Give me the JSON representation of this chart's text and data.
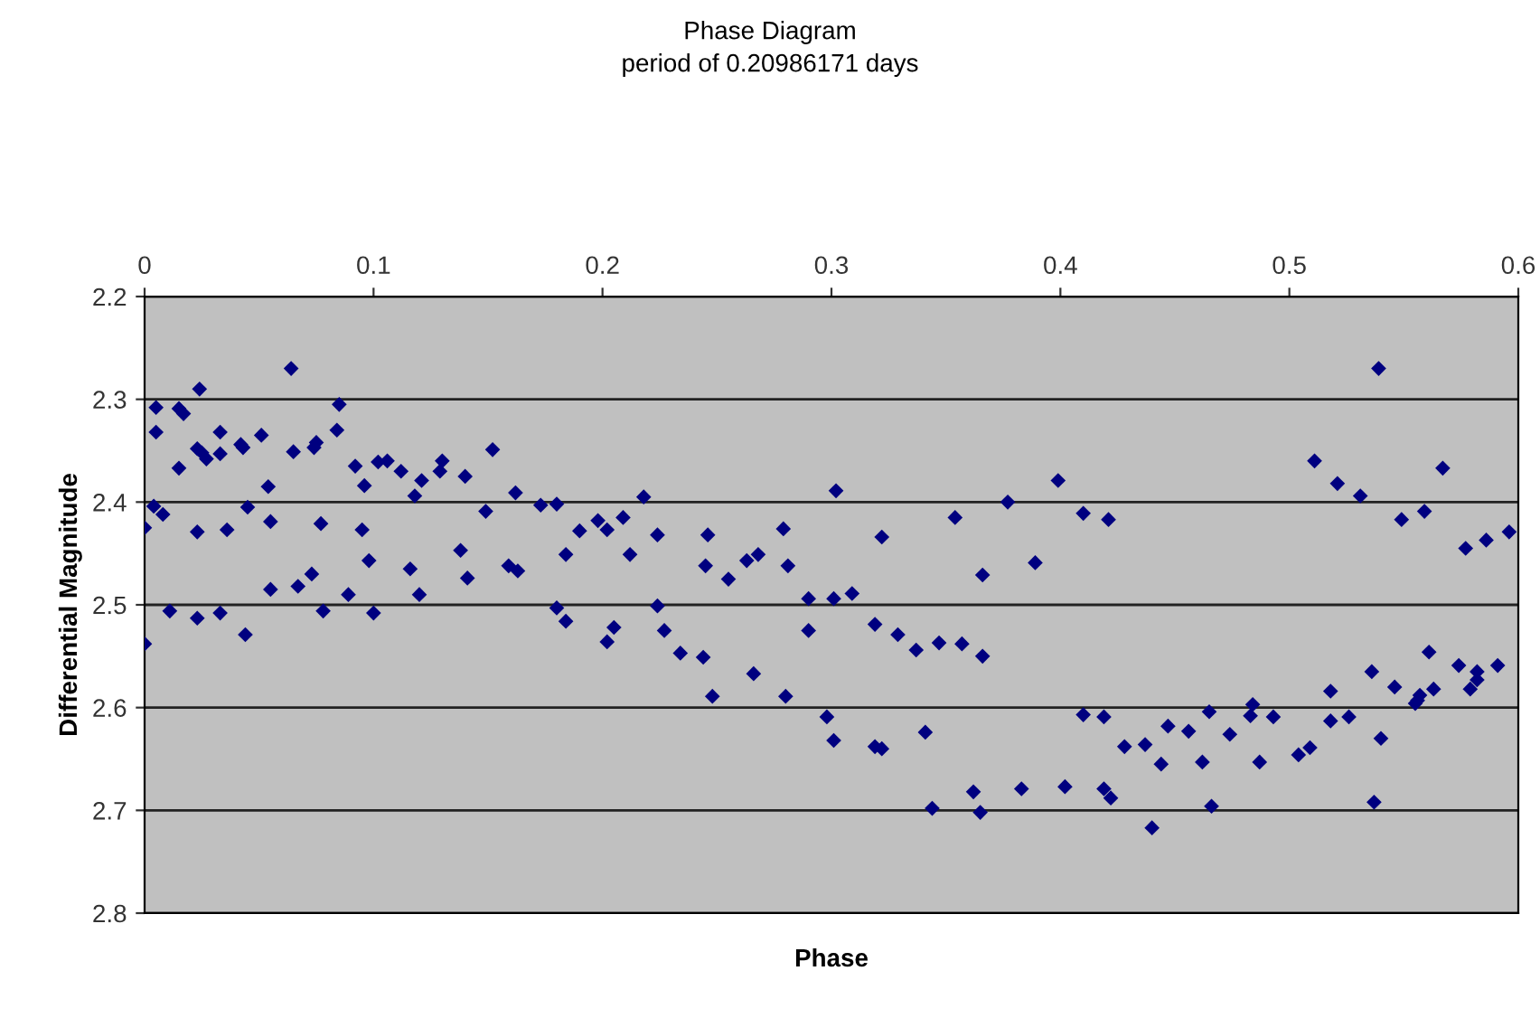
{
  "chart_data": {
    "type": "scatter",
    "title": "Phase Diagram",
    "subtitle": "period of 0.20986171 days",
    "xlabel": "Phase",
    "ylabel": "Differential Magnitude",
    "xlim": [
      0,
      0.6
    ],
    "xticks": [
      0,
      0.1,
      0.2,
      0.3,
      0.4,
      0.5,
      0.6
    ],
    "ylim": [
      2.8,
      2.2
    ],
    "yticks": [
      2.2,
      2.3,
      2.4,
      2.5,
      2.6,
      2.7,
      2.8
    ],
    "grid": "y",
    "marker": "diamond",
    "series": [
      {
        "color": "#000080",
        "x": [
          0.0,
          0.0,
          0.004,
          0.005,
          0.005,
          0.008,
          0.011,
          0.015,
          0.015,
          0.017,
          0.023,
          0.023,
          0.023,
          0.024,
          0.025,
          0.027,
          0.033,
          0.033,
          0.033,
          0.036,
          0.042,
          0.043,
          0.044,
          0.045,
          0.051,
          0.054,
          0.055,
          0.055,
          0.064,
          0.065,
          0.067,
          0.073,
          0.074,
          0.075,
          0.077,
          0.078,
          0.084,
          0.085,
          0.089,
          0.092,
          0.095,
          0.096,
          0.098,
          0.1,
          0.102,
          0.106,
          0.112,
          0.116,
          0.118,
          0.12,
          0.121,
          0.129,
          0.13,
          0.138,
          0.14,
          0.141,
          0.149,
          0.152,
          0.159,
          0.163,
          0.162,
          0.173,
          0.18,
          0.18,
          0.184,
          0.184,
          0.19,
          0.198,
          0.202,
          0.202,
          0.205,
          0.209,
          0.212,
          0.218,
          0.224,
          0.224,
          0.227,
          0.234,
          0.244,
          0.246,
          0.245,
          0.248,
          0.255,
          0.263,
          0.266,
          0.268,
          0.279,
          0.28,
          0.281,
          0.29,
          0.29,
          0.298,
          0.301,
          0.301,
          0.302,
          0.309,
          0.319,
          0.319,
          0.322,
          0.322,
          0.329,
          0.337,
          0.341,
          0.344,
          0.347,
          0.354,
          0.357,
          0.362,
          0.365,
          0.366,
          0.366,
          0.377,
          0.383,
          0.389,
          0.399,
          0.402,
          0.41,
          0.41,
          0.419,
          0.419,
          0.421,
          0.422,
          0.428,
          0.437,
          0.44,
          0.444,
          0.447,
          0.456,
          0.462,
          0.465,
          0.466,
          0.474,
          0.483,
          0.484,
          0.487,
          0.493,
          0.504,
          0.509,
          0.511,
          0.518,
          0.518,
          0.521,
          0.526,
          0.531,
          0.536,
          0.537,
          0.539,
          0.54,
          0.546,
          0.549,
          0.555,
          0.556,
          0.557,
          0.559,
          0.561,
          0.563,
          0.567,
          0.574,
          0.577,
          0.579,
          0.582,
          0.582,
          0.586,
          0.591,
          0.596
        ],
        "values": [
          2.425,
          2.538,
          2.404,
          2.308,
          2.332,
          2.412,
          2.506,
          2.367,
          2.309,
          2.314,
          2.429,
          2.513,
          2.348,
          2.29,
          2.352,
          2.358,
          2.332,
          2.353,
          2.508,
          2.427,
          2.344,
          2.347,
          2.529,
          2.405,
          2.335,
          2.385,
          2.419,
          2.485,
          2.27,
          2.351,
          2.482,
          2.47,
          2.347,
          2.342,
          2.421,
          2.506,
          2.33,
          2.305,
          2.49,
          2.365,
          2.427,
          2.384,
          2.457,
          2.508,
          2.361,
          2.36,
          2.37,
          2.465,
          2.394,
          2.49,
          2.379,
          2.37,
          2.36,
          2.447,
          2.375,
          2.474,
          2.409,
          2.349,
          2.462,
          2.467,
          2.391,
          2.403,
          2.402,
          2.503,
          2.516,
          2.451,
          2.428,
          2.418,
          2.427,
          2.536,
          2.522,
          2.415,
          2.451,
          2.395,
          2.432,
          2.501,
          2.525,
          2.547,
          2.551,
          2.432,
          2.462,
          2.589,
          2.475,
          2.457,
          2.567,
          2.451,
          2.426,
          2.589,
          2.462,
          2.494,
          2.525,
          2.609,
          2.494,
          2.632,
          2.389,
          2.489,
          2.519,
          2.638,
          2.64,
          2.434,
          2.529,
          2.544,
          2.624,
          2.698,
          2.537,
          2.415,
          2.538,
          2.682,
          2.702,
          2.471,
          2.55,
          2.4,
          2.679,
          2.459,
          2.379,
          2.677,
          2.607,
          2.411,
          2.679,
          2.609,
          2.417,
          2.688,
          2.638,
          2.636,
          2.717,
          2.655,
          2.618,
          2.623,
          2.653,
          2.604,
          2.696,
          2.626,
          2.608,
          2.597,
          2.653,
          2.609,
          2.646,
          2.639,
          2.36,
          2.613,
          2.584,
          2.382,
          2.609,
          2.394,
          2.565,
          2.692,
          2.27,
          2.63,
          2.58,
          2.417,
          2.596,
          2.593,
          2.588,
          2.409,
          2.546,
          2.582,
          2.367,
          2.559,
          2.445,
          2.582,
          2.573,
          2.565,
          2.437,
          2.559,
          2.429
        ]
      }
    ]
  }
}
